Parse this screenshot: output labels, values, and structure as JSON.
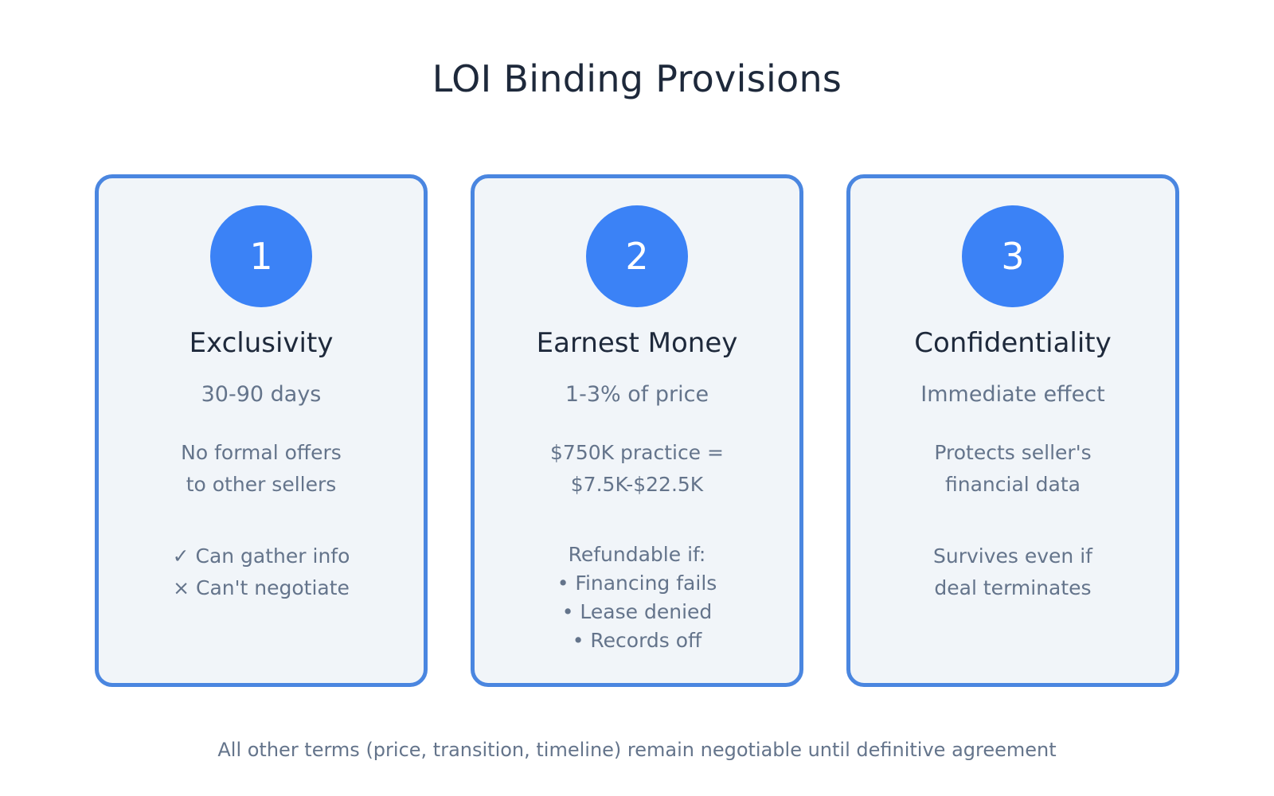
{
  "title": "LOI Binding Provisions",
  "cards": [
    {
      "number": "1",
      "title": "Exclusivity",
      "subtitle": "30-90 days",
      "description": [
        "No formal offers",
        "to other sellers"
      ],
      "notes": [
        "✓ Can gather info",
        "× Can't negotiate"
      ]
    },
    {
      "number": "2",
      "title": "Earnest Money",
      "subtitle": "1-3% of price",
      "description": [
        "$750K practice =",
        "$7.5K-$22.5K"
      ],
      "notes": [
        "Refundable if:",
        "• Financing fails",
        "• Lease denied",
        "• Records off"
      ]
    },
    {
      "number": "3",
      "title": "Confidentiality",
      "subtitle": "Immediate effect",
      "description": [
        "Protects seller's",
        "financial data"
      ],
      "notes": [
        "Survives even if",
        "deal terminates"
      ]
    }
  ],
  "footer": "All other terms (price, transition, timeline) remain negotiable until definitive agreement",
  "colors": {
    "accent": "#3b82f6",
    "border": "#4a86e0",
    "card_background": "#f1f5f9",
    "heading_text": "#1e293b",
    "muted_text": "#64748b"
  }
}
